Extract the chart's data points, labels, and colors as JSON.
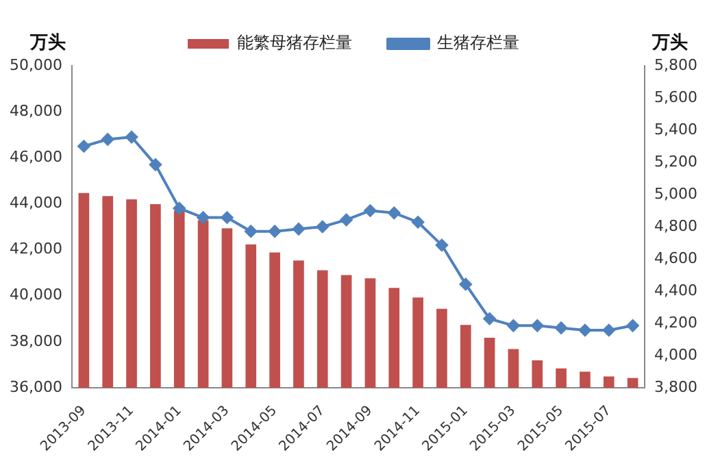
{
  "chart_data": {
    "type": "bar",
    "ylabel": "万头",
    "y2label": "万头",
    "categories": [
      "2013-09",
      null,
      "2013-11",
      null,
      "2014-01",
      null,
      "2014-03",
      null,
      "2014-05",
      null,
      "2014-07",
      null,
      "2014-09",
      null,
      "2014-11",
      null,
      "2015-01",
      null,
      "2015-03",
      null,
      "2015-05",
      null,
      "2015-07",
      null
    ],
    "series": [
      {
        "name": "能繁母猪存栏量",
        "axis": "y2",
        "color": "#c0504d",
        "values": [
          5010,
          4990,
          4970,
          4940,
          4900,
          4840,
          4790,
          4690,
          4640,
          4590,
          4530,
          4500,
          4480,
          4420,
          4360,
          4290,
          4190,
          4110,
          4040,
          3970,
          3920,
          3900,
          3870,
          3860
        ]
      },
      {
        "name": "生猪存栏量",
        "type": "line",
        "axis": "y",
        "color": "#4f81bd",
        "marker": "diamond",
        "values": [
          46500,
          46800,
          46900,
          45700,
          43800,
          43400,
          43400,
          42800,
          42800,
          42900,
          43000,
          43300,
          43700,
          43600,
          43200,
          42200,
          40500,
          39000,
          38700,
          38700,
          38600,
          38500,
          38500,
          38700
        ]
      }
    ],
    "ylim": [
      36000,
      50000
    ],
    "yticks": [
      {
        "value": 36000,
        "label": "36,000"
      },
      {
        "value": 38000,
        "label": "38,000"
      },
      {
        "value": 40000,
        "label": "40,000"
      },
      {
        "value": 42000,
        "label": "42,000"
      },
      {
        "value": 44000,
        "label": "44,000"
      },
      {
        "value": 46000,
        "label": "46,000"
      },
      {
        "value": 48000,
        "label": "48,000"
      },
      {
        "value": 50000,
        "label": "50,000"
      }
    ],
    "y2lim": [
      3800,
      5800
    ],
    "y2ticks": [
      {
        "value": 3800,
        "label": "3,800"
      },
      {
        "value": 4000,
        "label": "4,000"
      },
      {
        "value": 4200,
        "label": "4,200"
      },
      {
        "value": 4400,
        "label": "4,400"
      },
      {
        "value": 4600,
        "label": "4,600"
      },
      {
        "value": 4800,
        "label": "4,800"
      },
      {
        "value": 5000,
        "label": "5,000"
      },
      {
        "value": 5200,
        "label": "5,200"
      },
      {
        "value": 5400,
        "label": "5,400"
      },
      {
        "value": 5600,
        "label": "5,600"
      },
      {
        "value": 5800,
        "label": "5,800"
      }
    ],
    "grid": false,
    "legend": "top"
  }
}
